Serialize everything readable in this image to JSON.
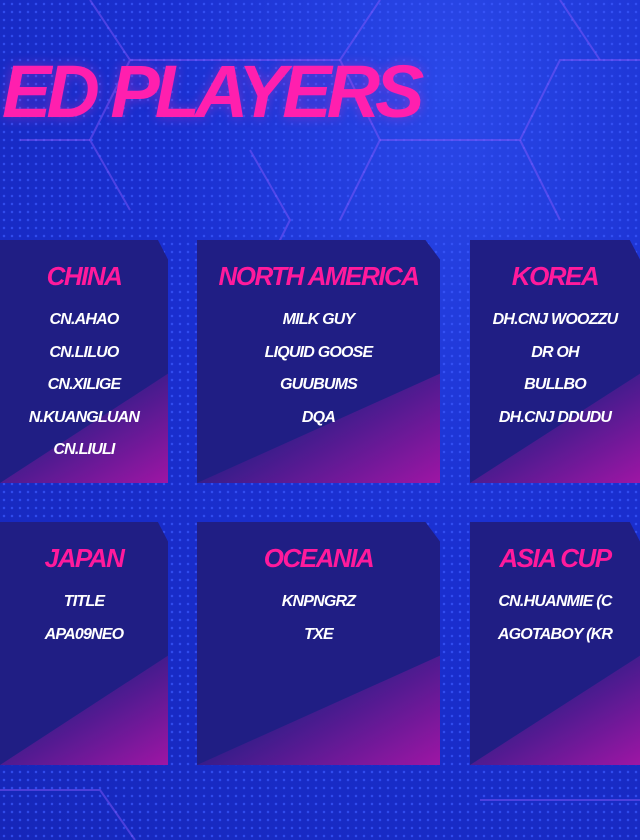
{
  "title": "ED PLAYERS",
  "colors": {
    "accent": "#ff1a9c",
    "panel": "#201e84",
    "background": "#1a2fd0"
  },
  "regions": [
    {
      "name": "CHINA",
      "players": [
        "CN.AHAO",
        "CN.LILUO",
        "CN.XILIGE",
        "N.KUANGLUAN",
        "CN.LIULI"
      ]
    },
    {
      "name": "NORTH AMERICA",
      "players": [
        "MILK GUY",
        "LIQUID GOOSE",
        "GUUBUMS",
        "DQA"
      ]
    },
    {
      "name": "KOREA",
      "players": [
        "DH.CNJ WOOZZU",
        "DR OH",
        "BULLBO",
        "DH.CNJ DDUDU"
      ]
    },
    {
      "name": "JAPAN",
      "players": [
        "TITLE",
        "APA09NEO"
      ]
    },
    {
      "name": "OCEANIA",
      "players": [
        "KNPNGRZ",
        "TXE"
      ]
    },
    {
      "name": "ASIA CUP",
      "players": [
        "CN.HUANMIE (C",
        "AGOTABOY (KR"
      ]
    }
  ]
}
